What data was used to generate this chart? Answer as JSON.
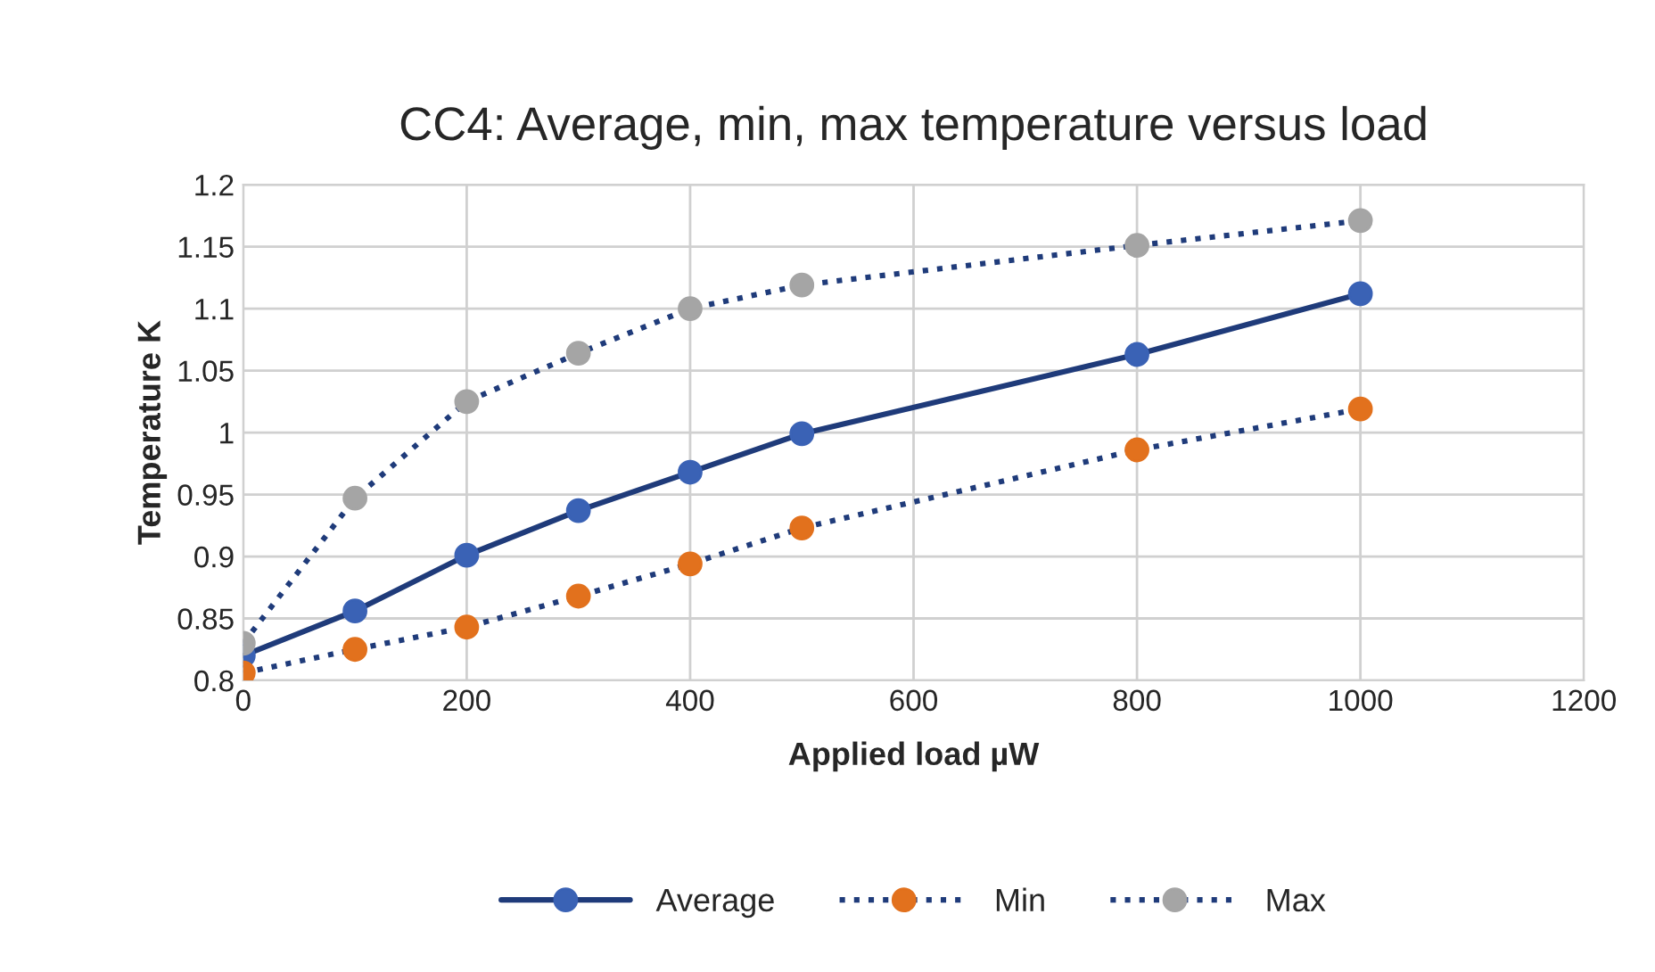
{
  "chart_data": {
    "type": "line",
    "title": "CC4: Average, min, max temperature versus load",
    "xlabel": "Applied load µW",
    "ylabel": "Temperature K",
    "x": [
      0,
      100,
      200,
      300,
      400,
      500,
      800,
      1000
    ],
    "series": [
      {
        "name": "Average",
        "color": "#3a62b5",
        "line_style": "solid",
        "values": [
          0.82,
          0.856,
          0.901,
          0.937,
          0.968,
          0.999,
          1.063,
          1.112
        ]
      },
      {
        "name": "Min",
        "color": "#e2711d",
        "line_style": "dotted",
        "values": [
          0.806,
          0.825,
          0.843,
          0.868,
          0.894,
          0.923,
          0.986,
          1.019
        ]
      },
      {
        "name": "Max",
        "color": "#a5a5a5",
        "line_style": "dotted",
        "values": [
          0.83,
          0.947,
          1.025,
          1.064,
          1.1,
          1.119,
          1.151,
          1.171
        ]
      }
    ],
    "xlim": [
      0,
      1200
    ],
    "xticks": [
      0,
      200,
      400,
      600,
      800,
      1000,
      1200
    ],
    "ylim": [
      0.8,
      1.2
    ],
    "yticks": [
      {
        "value": 0.8,
        "label": "0.8"
      },
      {
        "value": 0.85,
        "label": "0.85"
      },
      {
        "value": 0.9,
        "label": "0.9"
      },
      {
        "value": 0.95,
        "label": "0.95"
      },
      {
        "value": 1,
        "label": "1"
      },
      {
        "value": 1.05,
        "label": "1.05"
      },
      {
        "value": 1.1,
        "label": "1.1"
      },
      {
        "value": 1.15,
        "label": "1.15"
      },
      {
        "value": 1.2,
        "label": "1.2"
      }
    ],
    "grid": true,
    "legend": "bottom",
    "marker": "circle"
  }
}
